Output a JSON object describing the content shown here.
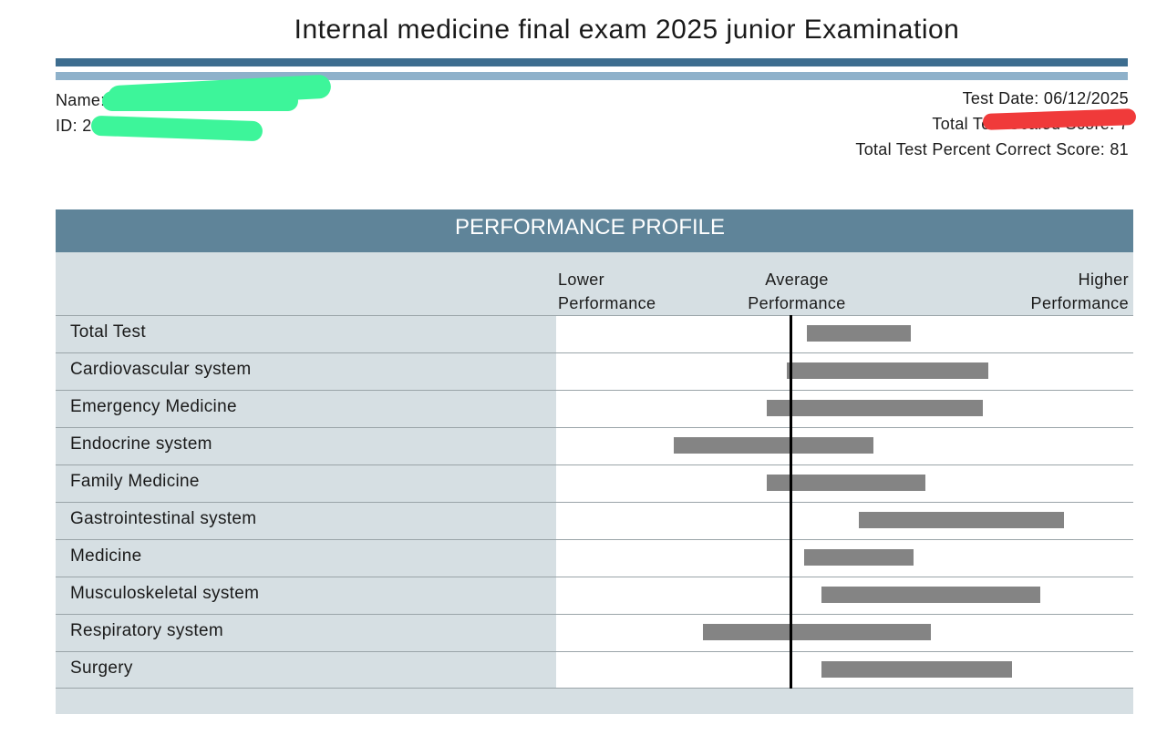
{
  "title": "Internal medicine final exam 2025 junior Examination",
  "student": {
    "name_label": "Name:",
    "id_label": "ID: 2"
  },
  "test_info": {
    "date": "Test Date: 06/12/2025",
    "scaled_label": "Total Test Scaled Score: 7",
    "percent": "Total Test Percent Correct Score: 81"
  },
  "redaction_colors": {
    "left": "#3df59a",
    "right": "#f03a3a"
  },
  "chart_data": {
    "type": "bar",
    "subtype": "horizontal-range",
    "title": "PERFORMANCE PROFILE",
    "scale_labels": {
      "lower": [
        "Lower",
        "Performance"
      ],
      "average": [
        "Average",
        "Performance"
      ],
      "higher": [
        "Higher",
        "Performance"
      ]
    },
    "xlim": [
      -1,
      1
    ],
    "average_reference": 0,
    "categories": [
      "Total Test",
      "Cardiovascular system",
      "Emergency Medicine",
      "Endocrine system",
      "Family Medicine",
      "Gastrointestinal system",
      "Medicine",
      "Musculoskeletal system",
      "Respiratory system",
      "Surgery"
    ],
    "ranges": [
      [
        0.06,
        0.42
      ],
      [
        -0.01,
        0.69
      ],
      [
        -0.08,
        0.67
      ],
      [
        -0.4,
        0.29
      ],
      [
        -0.08,
        0.47
      ],
      [
        0.24,
        0.95
      ],
      [
        0.05,
        0.43
      ],
      [
        0.11,
        0.87
      ],
      [
        -0.3,
        0.49
      ],
      [
        0.11,
        0.77
      ]
    ],
    "bar_color": "#848484"
  }
}
